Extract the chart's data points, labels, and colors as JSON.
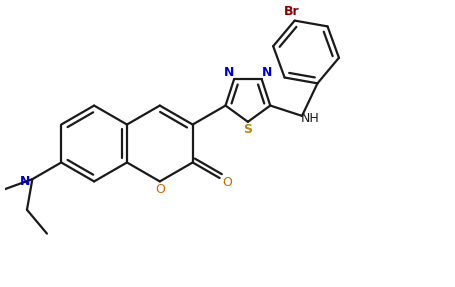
{
  "bg_color": "#ffffff",
  "line_color": "#1a1a1a",
  "atom_color_N": "#0000cd",
  "atom_color_O": "#cc6600",
  "atom_color_S": "#b8860b",
  "atom_color_Br": "#8b0000",
  "atom_color_NH": "#1a1a1a",
  "line_width": 1.6,
  "font_size": 9,
  "figsize": [
    4.56,
    2.87
  ],
  "dpi": 100,
  "xlim": [
    -0.5,
    9.5
  ],
  "ylim": [
    -3.2,
    3.2
  ]
}
